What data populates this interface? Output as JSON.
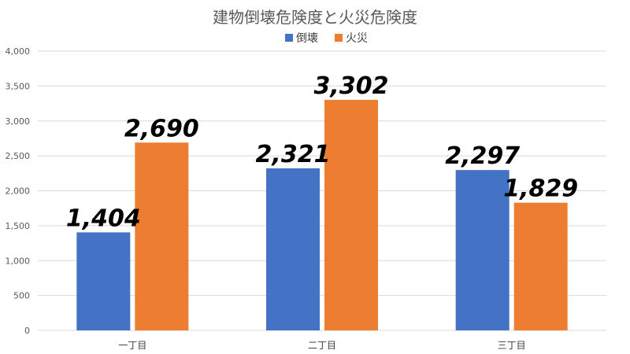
{
  "chart_data": {
    "type": "bar",
    "title": "建物倒壊危険度と火災危険度",
    "categories": [
      "一丁目",
      "二丁目",
      "三丁目"
    ],
    "series": [
      {
        "name": "倒壊",
        "color": "#4472c4",
        "values": [
          1404,
          2321,
          2297
        ]
      },
      {
        "name": "火災",
        "color": "#ed7d31",
        "values": [
          2690,
          3302,
          1829
        ]
      }
    ],
    "data_labels": [
      [
        "1,404",
        "2,321",
        "2,297"
      ],
      [
        "2,690",
        "3,302",
        "1,829"
      ]
    ],
    "yticks": [
      "0",
      "500",
      "1,000",
      "1,500",
      "2,000",
      "2,500",
      "3,000",
      "3,500",
      "4,000"
    ],
    "ylim": [
      0,
      4000
    ],
    "xlabel": "",
    "ylabel": "",
    "grid": true,
    "legend_position": "top"
  }
}
